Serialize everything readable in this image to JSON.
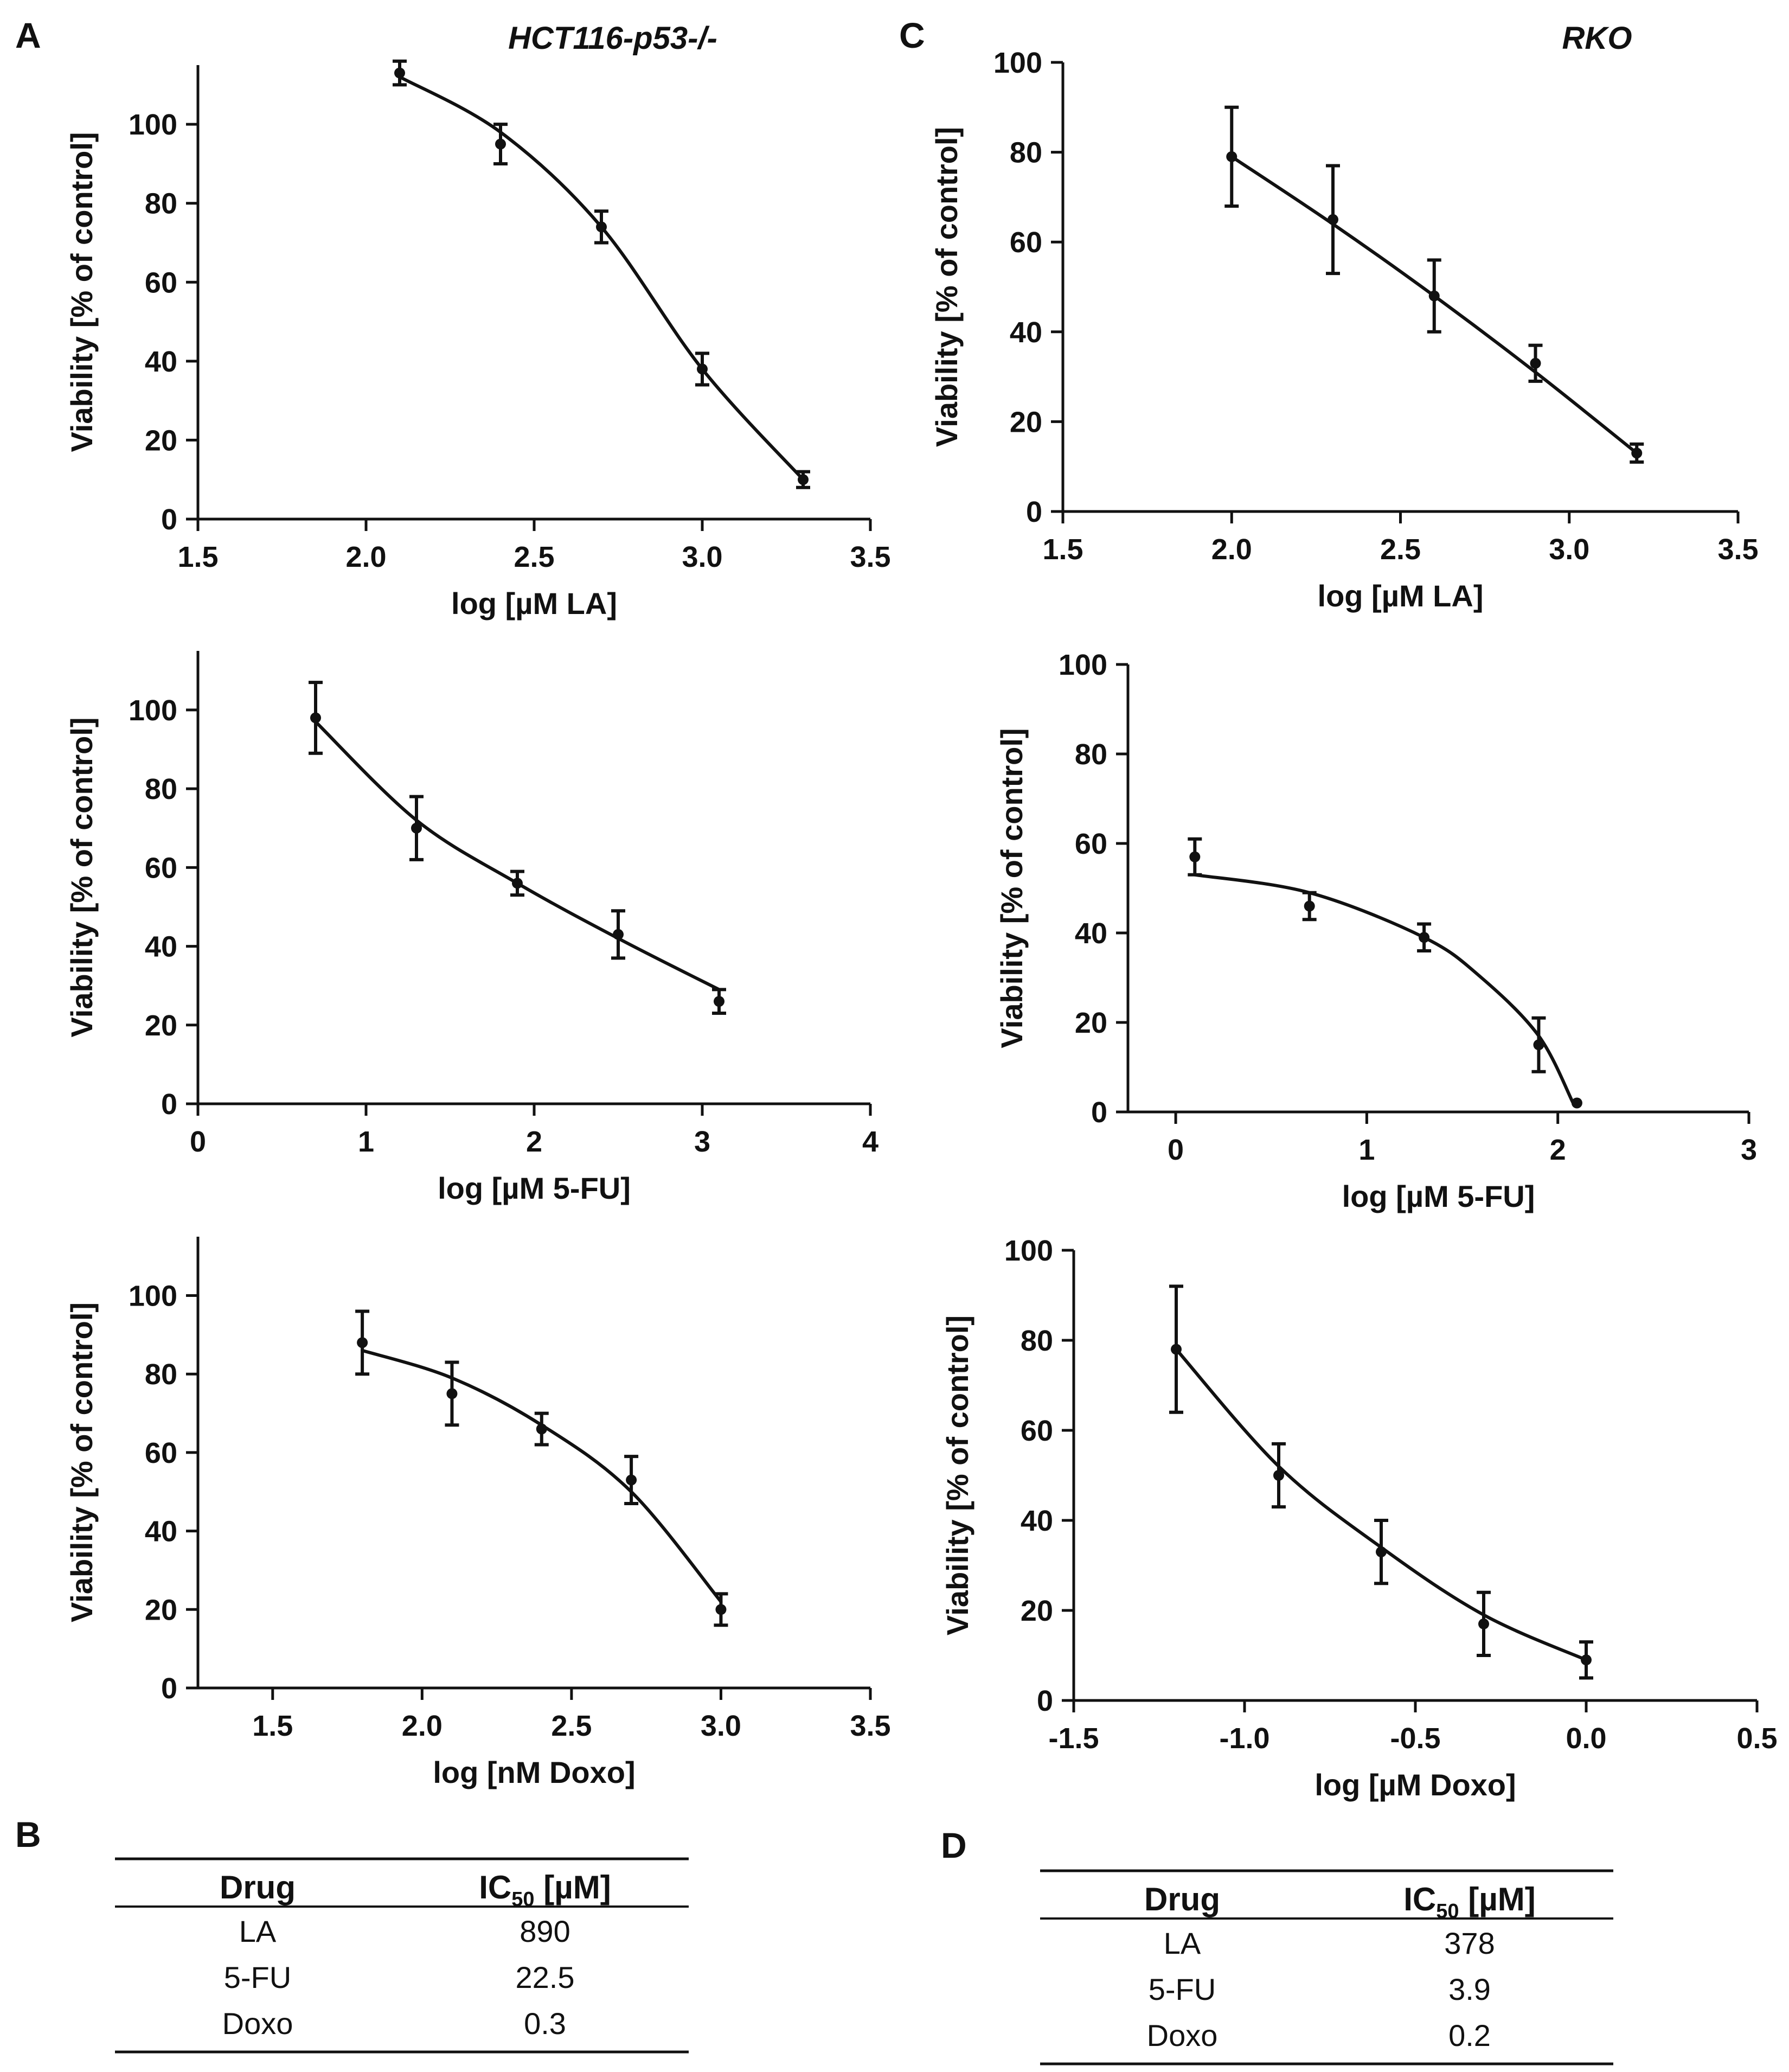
{
  "panels": {
    "A": "A",
    "B": "B",
    "C": "C",
    "D": "D"
  },
  "chart_data": [
    {
      "id": "A-LA",
      "type": "line",
      "title": "HCT116-p53-/-",
      "xlabel": "log [µM LA]",
      "ylabel": "Viability [% of control]",
      "xlim": [
        1.5,
        3.5
      ],
      "ylim": [
        0,
        115
      ],
      "xticks": [
        "1.5",
        "2.0",
        "2.5",
        "3.0",
        "3.5"
      ],
      "yticks": [
        "0",
        "20",
        "40",
        "60",
        "80",
        "100"
      ],
      "x": [
        2.1,
        2.4,
        2.7,
        3.0,
        3.3
      ],
      "y": [
        113,
        95,
        74,
        38,
        10
      ],
      "err": [
        3,
        5,
        4,
        4,
        2
      ],
      "fit": [
        [
          2.1,
          112
        ],
        [
          2.4,
          98
        ],
        [
          2.7,
          74
        ],
        [
          3.0,
          38
        ],
        [
          3.3,
          10
        ]
      ]
    },
    {
      "id": "A-5FU",
      "type": "line",
      "title": "",
      "xlabel": "log [µM 5-FU]",
      "ylabel": "Viability [% of control]",
      "xlim": [
        0,
        4
      ],
      "ylim": [
        0,
        115
      ],
      "xticks": [
        "0",
        "1",
        "2",
        "3",
        "4"
      ],
      "yticks": [
        "0",
        "20",
        "40",
        "60",
        "80",
        "100"
      ],
      "x": [
        0.7,
        1.3,
        1.9,
        2.5,
        3.1
      ],
      "y": [
        98,
        70,
        56,
        43,
        26
      ],
      "err": [
        9,
        8,
        3,
        6,
        3
      ],
      "fit": [
        [
          0.7,
          97
        ],
        [
          1.3,
          72
        ],
        [
          1.9,
          56
        ],
        [
          2.5,
          42
        ],
        [
          3.1,
          29
        ]
      ]
    },
    {
      "id": "A-Doxo",
      "type": "line",
      "title": "",
      "xlabel": "log [nM Doxo]",
      "ylabel": "Viability [% of control]",
      "xlim": [
        1.25,
        3.5
      ],
      "ylim": [
        0,
        115
      ],
      "xticks": [
        "1.5",
        "2.0",
        "2.5",
        "3.0",
        "3.5"
      ],
      "yticks": [
        "0",
        "20",
        "40",
        "60",
        "80",
        "100"
      ],
      "x": [
        1.8,
        2.1,
        2.4,
        2.7,
        3.0
      ],
      "y": [
        88,
        75,
        66,
        53,
        20
      ],
      "err": [
        8,
        8,
        4,
        6,
        4
      ],
      "fit": [
        [
          1.8,
          86
        ],
        [
          2.1,
          79
        ],
        [
          2.4,
          67
        ],
        [
          2.7,
          50
        ],
        [
          3.0,
          22
        ]
      ]
    },
    {
      "id": "C-LA",
      "type": "line",
      "title": "RKO",
      "xlabel": "log [µM LA]",
      "ylabel": "Viability [% of control]",
      "xlim": [
        1.5,
        3.5
      ],
      "ylim": [
        0,
        100
      ],
      "xticks": [
        "1.5",
        "2.0",
        "2.5",
        "3.0",
        "3.5"
      ],
      "yticks": [
        "0",
        "20",
        "40",
        "60",
        "80",
        "100"
      ],
      "x": [
        2.0,
        2.3,
        2.6,
        2.9,
        3.2
      ],
      "y": [
        79,
        65,
        48,
        33,
        13
      ],
      "err": [
        11,
        12,
        8,
        4,
        2
      ],
      "fit": [
        [
          2.0,
          79
        ],
        [
          2.3,
          64
        ],
        [
          2.6,
          48
        ],
        [
          2.9,
          31
        ],
        [
          3.2,
          13
        ]
      ]
    },
    {
      "id": "C-5FU",
      "type": "line",
      "title": "",
      "xlabel": "log [µM 5-FU]",
      "ylabel": "Viability [% of control]",
      "xlim": [
        -0.25,
        3
      ],
      "ylim": [
        0,
        100
      ],
      "xticks": [
        "0",
        "1",
        "2",
        "3"
      ],
      "yticks": [
        "0",
        "20",
        "40",
        "60",
        "80",
        "100"
      ],
      "x": [
        0.1,
        0.7,
        1.3,
        1.9,
        2.1
      ],
      "y": [
        57,
        46,
        39,
        15,
        2
      ],
      "err": [
        4,
        3,
        3,
        6,
        0
      ],
      "fit": [
        [
          0.1,
          53
        ],
        [
          0.7,
          49
        ],
        [
          1.3,
          39
        ],
        [
          1.6,
          30
        ],
        [
          1.9,
          17
        ],
        [
          2.08,
          2
        ]
      ]
    },
    {
      "id": "C-Doxo",
      "type": "line",
      "title": "",
      "xlabel": "log [µM Doxo]",
      "ylabel": "Viability [% of control]",
      "xlim": [
        -1.5,
        0.5
      ],
      "ylim": [
        0,
        100
      ],
      "xticks": [
        "-1.5",
        "-1.0",
        "-0.5",
        "0.0",
        "0.5"
      ],
      "yticks": [
        "0",
        "20",
        "40",
        "60",
        "80",
        "100"
      ],
      "x": [
        -1.2,
        -0.9,
        -0.6,
        -0.3,
        0.0
      ],
      "y": [
        78,
        50,
        33,
        17,
        9
      ],
      "err": [
        14,
        7,
        7,
        7,
        4
      ],
      "fit": [
        [
          -1.2,
          78
        ],
        [
          -0.9,
          52
        ],
        [
          -0.6,
          34
        ],
        [
          -0.3,
          19
        ],
        [
          0.0,
          9
        ]
      ]
    }
  ],
  "tables": {
    "B": {
      "headers": [
        "Drug",
        "IC",
        "50",
        " [µM]"
      ],
      "rows": [
        [
          "LA",
          "890"
        ],
        [
          "5-FU",
          "22.5"
        ],
        [
          "Doxo",
          "0.3"
        ]
      ]
    },
    "D": {
      "headers": [
        "Drug",
        "IC",
        "50",
        " [µM]"
      ],
      "rows": [
        [
          "LA",
          "378"
        ],
        [
          "5-FU",
          "3.9"
        ],
        [
          "Doxo",
          "0.2"
        ]
      ]
    }
  }
}
